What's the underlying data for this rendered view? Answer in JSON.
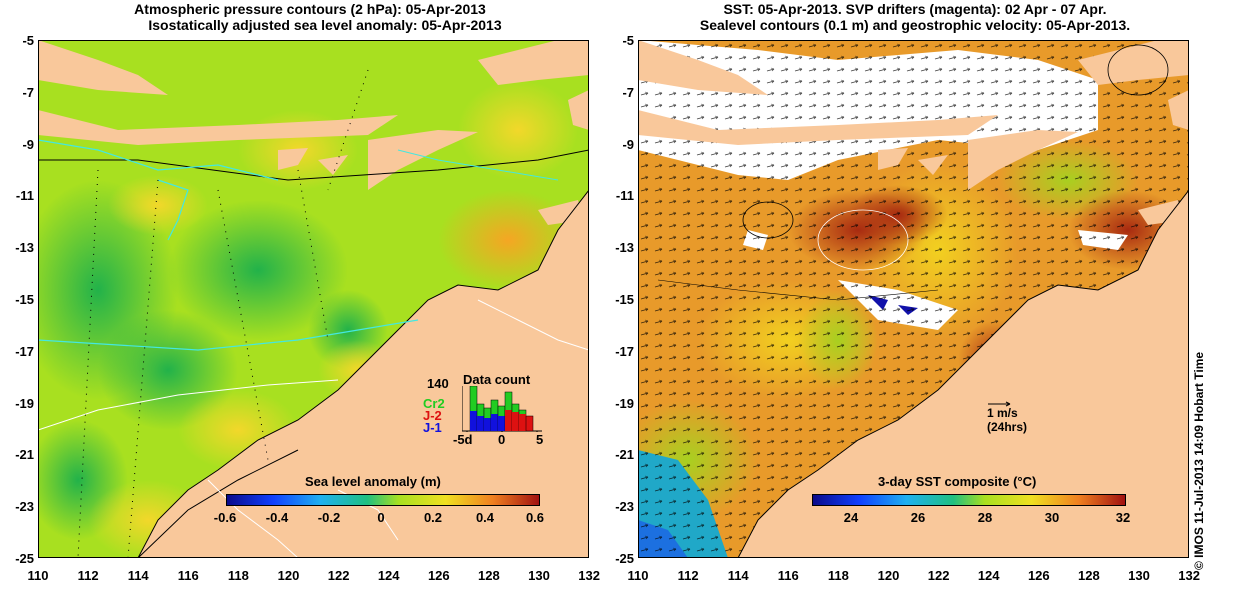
{
  "left_panel": {
    "title_line1": "Atmospheric pressure contours (2 hPa): 05-Apr-2013",
    "title_line2": "Isostatically adjusted sea level anomaly: 05-Apr-2013",
    "colorbar_title": "Sea level anomaly (m)",
    "colorbar_ticks": [
      "-0.6",
      "-0.4",
      "-0.2",
      "0",
      "0.2",
      "0.4",
      "0.6"
    ],
    "data_count": {
      "title": "Data count",
      "max_label": "140",
      "series": [
        {
          "name": "Cr2",
          "color": "#22cc22"
        },
        {
          "name": "J-2",
          "color": "#dd1111"
        },
        {
          "name": "J-1",
          "color": "#1111dd"
        }
      ],
      "x_ticks": [
        "-5d",
        "0",
        "5"
      ]
    }
  },
  "right_panel": {
    "title_line1": "SST: 05-Apr-2013. SVP drifters (magenta): 02 Apr - 07 Apr.",
    "title_line2": "Sealevel contours (0.1 m) and geostrophic velocity: 05-Apr-2013.",
    "colorbar_title": "3-day SST composite (°C)",
    "colorbar_ticks": [
      "24",
      "26",
      "28",
      "30",
      "32"
    ],
    "scale_label_1": "1 m/s",
    "scale_label_2": "(24hrs)"
  },
  "axes": {
    "y_ticks": [
      "-5",
      "-7",
      "-9",
      "-11",
      "-13",
      "-15",
      "-17",
      "-19",
      "-21",
      "-23",
      "-25"
    ],
    "x_ticks": [
      "110",
      "112",
      "114",
      "116",
      "118",
      "120",
      "122",
      "124",
      "126",
      "128",
      "130",
      "132"
    ]
  },
  "watermark": "© IMOS 11-Jul-2013 14:09 Hobart Time",
  "colors": {
    "land": "#f9c89b",
    "sla_mid": "#a8e020",
    "sst_warm": "#e89a2a"
  }
}
